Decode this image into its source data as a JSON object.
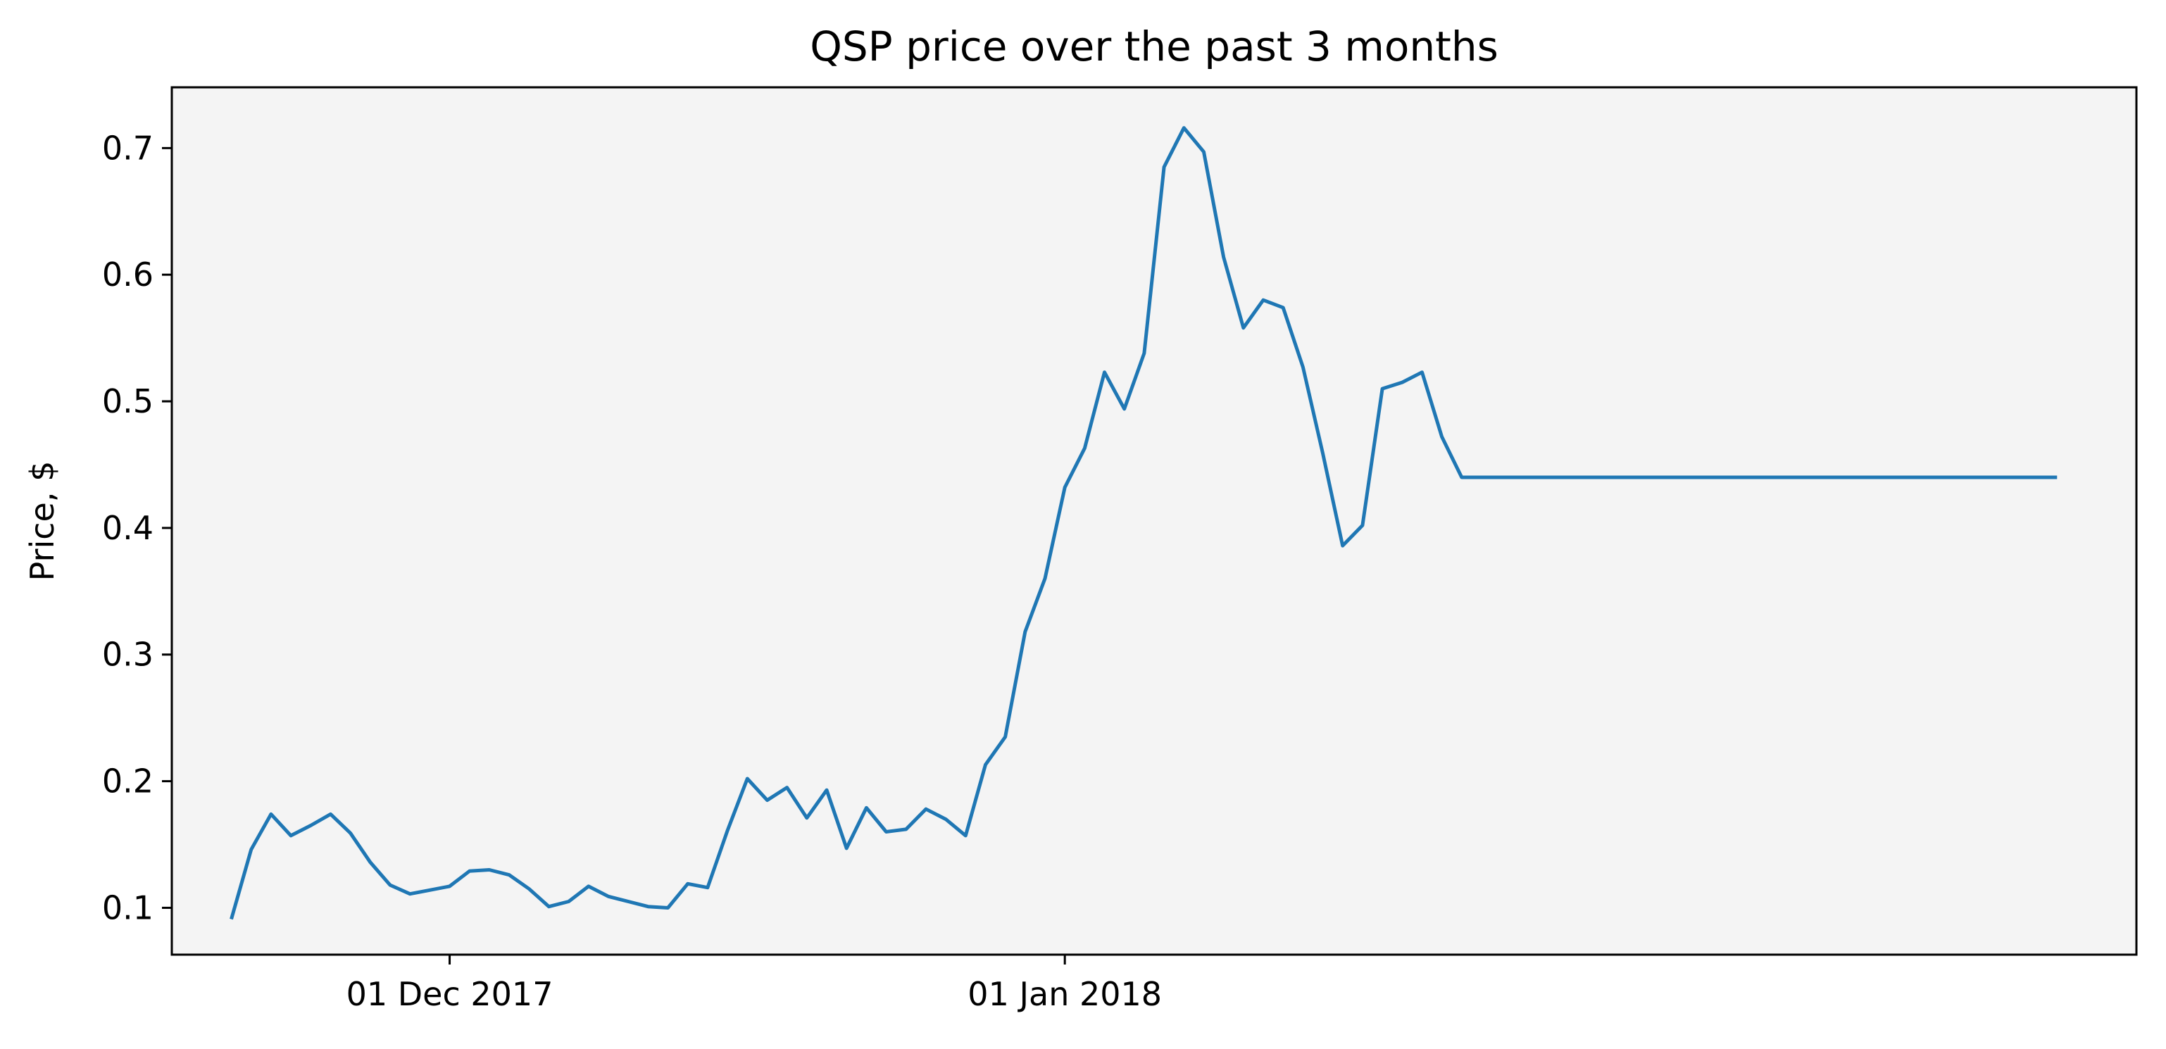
{
  "chart_data": {
    "type": "line",
    "title": "QSP price over the past 3 months",
    "xlabel": "",
    "ylabel": "Price, $",
    "x_ticks": [
      {
        "date": "2017-12-01",
        "label": "01 Dec 2017"
      },
      {
        "date": "2018-01-01",
        "label": "01 Jan 2018"
      }
    ],
    "y_ticks": [
      0.1,
      0.2,
      0.3,
      0.4,
      0.5,
      0.6,
      0.7
    ],
    "xlim": [
      "2017-11-17",
      "2018-02-24"
    ],
    "ylim": [
      0.063,
      0.748
    ],
    "grid": false,
    "legend": "none",
    "colors": {
      "line": "#1f77b4",
      "plot_background": "#f4f4f4",
      "axes": "#000000"
    },
    "series": [
      {
        "x": [
          "2017-11-20",
          "2017-11-21",
          "2017-11-22",
          "2017-11-23",
          "2017-11-24",
          "2017-11-25",
          "2017-11-26",
          "2017-11-27",
          "2017-11-28",
          "2017-11-29",
          "2017-11-30",
          "2017-12-01",
          "2017-12-02",
          "2017-12-03",
          "2017-12-04",
          "2017-12-05",
          "2017-12-06",
          "2017-12-07",
          "2017-12-08",
          "2017-12-09",
          "2017-12-10",
          "2017-12-11",
          "2017-12-12",
          "2017-12-13",
          "2017-12-14",
          "2017-12-15",
          "2017-12-16",
          "2017-12-17",
          "2017-12-18",
          "2017-12-19",
          "2017-12-20",
          "2017-12-21",
          "2017-12-22",
          "2017-12-23",
          "2017-12-24",
          "2017-12-25",
          "2017-12-26",
          "2017-12-27",
          "2017-12-28",
          "2017-12-29",
          "2017-12-30",
          "2017-12-31",
          "2018-01-01",
          "2018-01-02",
          "2018-01-03",
          "2018-01-04",
          "2018-01-05",
          "2018-01-06",
          "2018-01-07",
          "2018-01-08",
          "2018-01-09",
          "2018-01-10",
          "2018-01-11",
          "2018-01-12",
          "2018-01-13",
          "2018-01-14",
          "2018-01-15",
          "2018-01-16",
          "2018-01-17",
          "2018-01-18",
          "2018-01-19",
          "2018-01-20",
          "2018-01-21",
          "2018-01-22",
          "2018-01-23",
          "2018-01-24",
          "2018-01-25",
          "2018-01-26",
          "2018-01-27",
          "2018-01-28",
          "2018-01-29",
          "2018-01-30",
          "2018-01-31",
          "2018-02-01",
          "2018-02-02",
          "2018-02-03",
          "2018-02-04",
          "2018-02-05",
          "2018-02-06",
          "2018-02-07",
          "2018-02-08",
          "2018-02-09",
          "2018-02-10",
          "2018-02-11",
          "2018-02-12",
          "2018-02-13",
          "2018-02-14",
          "2018-02-15",
          "2018-02-16",
          "2018-02-17",
          "2018-02-18",
          "2018-02-19",
          "2018-02-20"
        ],
        "y": [
          0.091,
          0.146,
          0.174,
          0.157,
          0.165,
          0.174,
          0.159,
          0.136,
          0.118,
          0.111,
          0.114,
          0.117,
          0.129,
          0.13,
          0.126,
          0.115,
          0.101,
          0.105,
          0.117,
          0.109,
          0.105,
          0.101,
          0.1,
          0.119,
          0.116,
          0.161,
          0.202,
          0.185,
          0.195,
          0.171,
          0.193,
          0.147,
          0.179,
          0.16,
          0.162,
          0.178,
          0.17,
          0.157,
          0.213,
          0.235,
          0.318,
          0.36,
          0.432,
          0.463,
          0.523,
          0.494,
          0.538,
          0.685,
          0.716,
          0.697,
          0.614,
          0.558,
          0.58,
          0.574,
          0.527,
          0.459,
          0.386,
          0.402,
          0.51,
          0.515,
          0.523,
          0.472,
          0.44,
          0.44,
          0.44,
          0.44,
          0.44,
          0.44,
          0.44,
          0.44,
          0.44,
          0.44,
          0.44,
          0.44,
          0.44,
          0.44,
          0.44,
          0.44,
          0.44,
          0.44,
          0.44,
          0.44,
          0.44,
          0.44,
          0.44,
          0.44,
          0.44,
          0.44,
          0.44,
          0.44,
          0.44,
          0.44,
          0.44
        ]
      }
    ]
  }
}
